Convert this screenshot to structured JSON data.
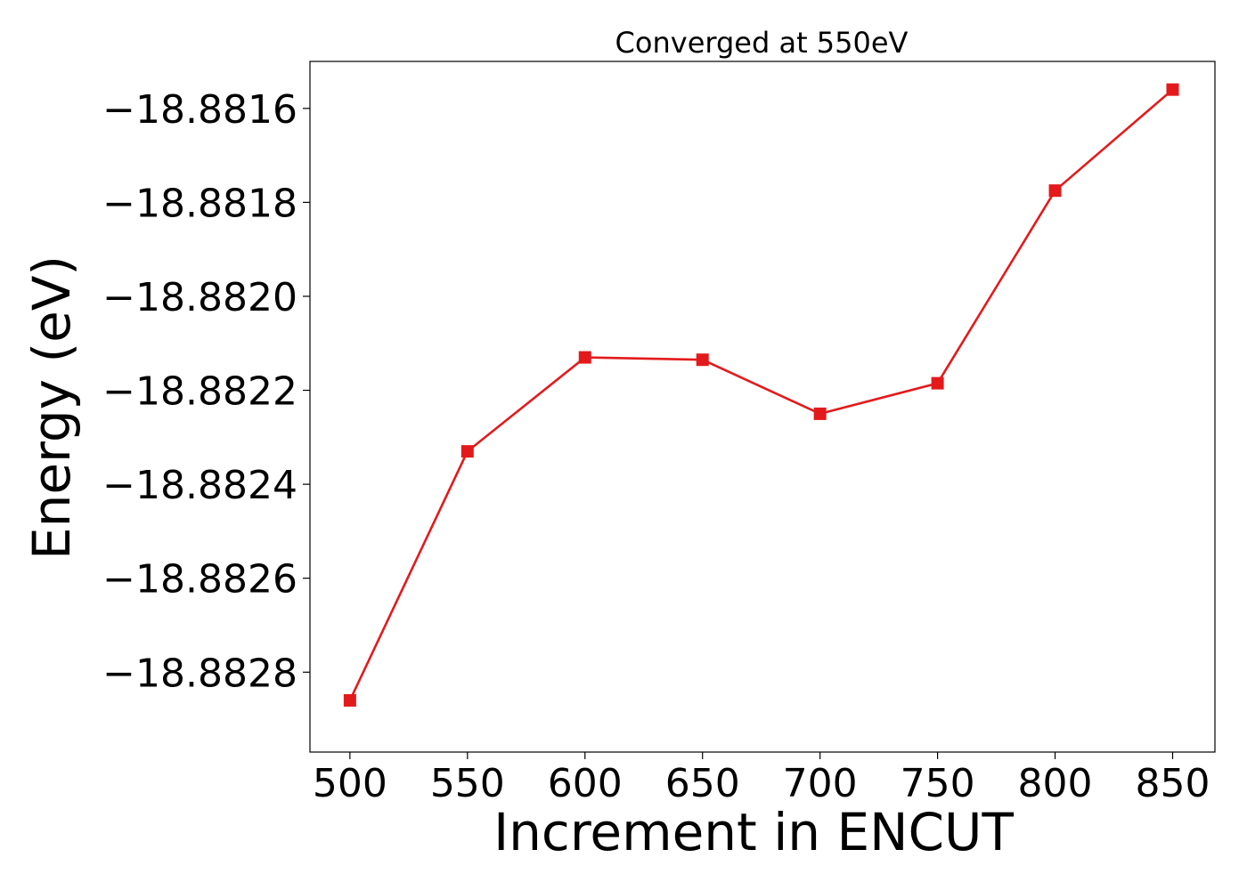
{
  "chart_data": {
    "type": "line",
    "title": "Converged at 550eV",
    "xlabel": "Increment in ENCUT",
    "ylabel": "Energy (eV)",
    "x": [
      500,
      550,
      600,
      650,
      700,
      750,
      800,
      850
    ],
    "series": [
      {
        "values": [
          -18.88286,
          -18.88233,
          -18.88213,
          -18.882135,
          -18.88225,
          -18.882185,
          -18.881775,
          -18.88156
        ],
        "color": "#e31a1c",
        "marker": "square"
      }
    ],
    "xticks": [
      "500",
      "550",
      "600",
      "650",
      "700",
      "750",
      "800",
      "850"
    ],
    "yticks": [
      -18.8828,
      -18.8826,
      -18.8824,
      -18.8822,
      -18.882,
      -18.8818,
      -18.8816
    ],
    "ytick_labels": [
      "−18.8828",
      "−18.8826",
      "−18.8824",
      "−18.8822",
      "−18.8820",
      "−18.8818",
      "−18.8816"
    ],
    "xlim": [
      483,
      868
    ],
    "ylim": [
      -18.88297,
      -18.8815
    ],
    "grid": false,
    "legend": "none"
  }
}
